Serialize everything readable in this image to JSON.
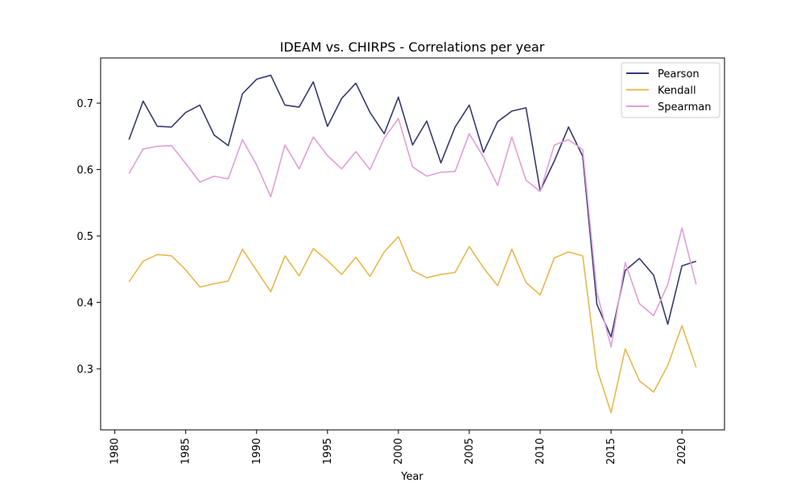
{
  "chart_data": {
    "type": "line",
    "title": "IDEAM vs. CHIRPS - Correlations per year",
    "xlabel": "Year",
    "ylabel": "",
    "xlim": [
      1979.0,
      2023.0
    ],
    "ylim": [
      0.208,
      0.768
    ],
    "x_ticks": [
      1980,
      1985,
      1990,
      1995,
      2000,
      2005,
      2010,
      2015,
      2020
    ],
    "y_ticks": [
      0.3,
      0.4,
      0.5,
      0.6,
      0.7
    ],
    "y_tick_labels": [
      "0.3",
      "0.4",
      "0.5",
      "0.6",
      "0.7"
    ],
    "legend_position": "top-right",
    "grid": false,
    "x": [
      1981,
      1982,
      1983,
      1984,
      1985,
      1986,
      1987,
      1988,
      1989,
      1990,
      1991,
      1992,
      1993,
      1994,
      1995,
      1996,
      1997,
      1998,
      1999,
      2000,
      2001,
      2002,
      2003,
      2004,
      2005,
      2006,
      2007,
      2008,
      2009,
      2010,
      2011,
      2012,
      2013,
      2014,
      2015,
      2016,
      2017,
      2018,
      2019,
      2020,
      2021
    ],
    "series": [
      {
        "name": "Pearson",
        "color": "#353a70",
        "values": [
          0.645,
          0.703,
          0.665,
          0.664,
          0.686,
          0.697,
          0.652,
          0.636,
          0.714,
          0.736,
          0.742,
          0.697,
          0.694,
          0.732,
          0.665,
          0.707,
          0.73,
          0.686,
          0.654,
          0.709,
          0.637,
          0.673,
          0.61,
          0.664,
          0.697,
          0.626,
          0.672,
          0.688,
          0.693,
          0.568,
          0.613,
          0.664,
          0.62,
          0.397,
          0.348,
          0.448,
          0.466,
          0.441,
          0.367,
          0.455,
          0.462
        ]
      },
      {
        "name": "Kendall",
        "color": "#e8b84f",
        "values": [
          0.431,
          0.462,
          0.472,
          0.47,
          0.449,
          0.423,
          0.428,
          0.432,
          0.48,
          0.448,
          0.416,
          0.47,
          0.44,
          0.481,
          0.463,
          0.442,
          0.468,
          0.439,
          0.476,
          0.499,
          0.448,
          0.437,
          0.442,
          0.445,
          0.484,
          0.452,
          0.425,
          0.48,
          0.43,
          0.411,
          0.467,
          0.476,
          0.47,
          0.3,
          0.234,
          0.33,
          0.282,
          0.265,
          0.305,
          0.365,
          0.302
        ]
      },
      {
        "name": "Spearman",
        "color": "#e09fd8",
        "values": [
          0.594,
          0.631,
          0.635,
          0.636,
          0.609,
          0.581,
          0.59,
          0.586,
          0.645,
          0.607,
          0.559,
          0.637,
          0.601,
          0.649,
          0.621,
          0.601,
          0.627,
          0.6,
          0.647,
          0.677,
          0.604,
          0.59,
          0.596,
          0.597,
          0.654,
          0.619,
          0.576,
          0.649,
          0.584,
          0.567,
          0.637,
          0.645,
          0.63,
          0.415,
          0.333,
          0.46,
          0.398,
          0.38,
          0.427,
          0.512,
          0.427
        ]
      }
    ]
  }
}
